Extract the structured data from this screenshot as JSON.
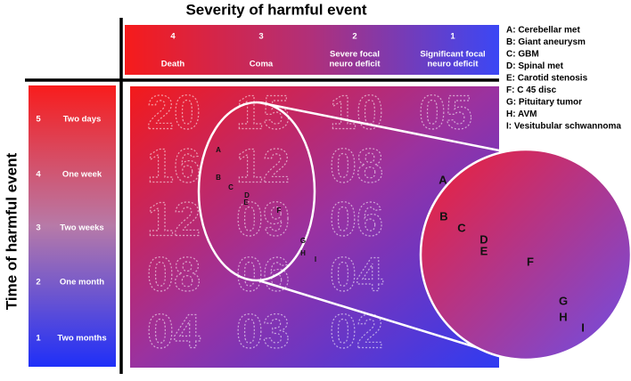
{
  "title": "Severity of harmful event",
  "y_axis_label": "Time of harmful event",
  "severity": [
    {
      "rank": 4,
      "label": [
        "Death"
      ]
    },
    {
      "rank": 3,
      "label": [
        "Coma"
      ]
    },
    {
      "rank": 2,
      "label": [
        "Severe focal",
        "neuro deficit"
      ]
    },
    {
      "rank": 1,
      "label": [
        "Significant focal",
        "neuro deficit"
      ]
    }
  ],
  "time": [
    {
      "rank": 5,
      "label": "Two days"
    },
    {
      "rank": 4,
      "label": "One week"
    },
    {
      "rank": 3,
      "label": "Two weeks"
    },
    {
      "rank": 2,
      "label": "One month"
    },
    {
      "rank": 1,
      "label": "Two months"
    }
  ],
  "grid_numbers": [
    [
      "20",
      "15",
      "10",
      "05"
    ],
    [
      "16",
      "12",
      "08"
    ],
    [
      "12",
      "09",
      "06"
    ],
    [
      "08",
      "06",
      "04"
    ],
    [
      "04",
      "03",
      "02"
    ]
  ],
  "events": [
    "A",
    "B",
    "C",
    "D",
    "E",
    "F",
    "G",
    "H",
    "I"
  ],
  "legend": [
    "A: Cerebellar met",
    "B: Giant aneurysm",
    "C: GBM",
    "D: Spinal met",
    "E: Carotid stenosis",
    "F: C 45 disc",
    "G: Pituitary tumor",
    "H: AVM",
    "I: Vesitubular schwannoma"
  ]
}
